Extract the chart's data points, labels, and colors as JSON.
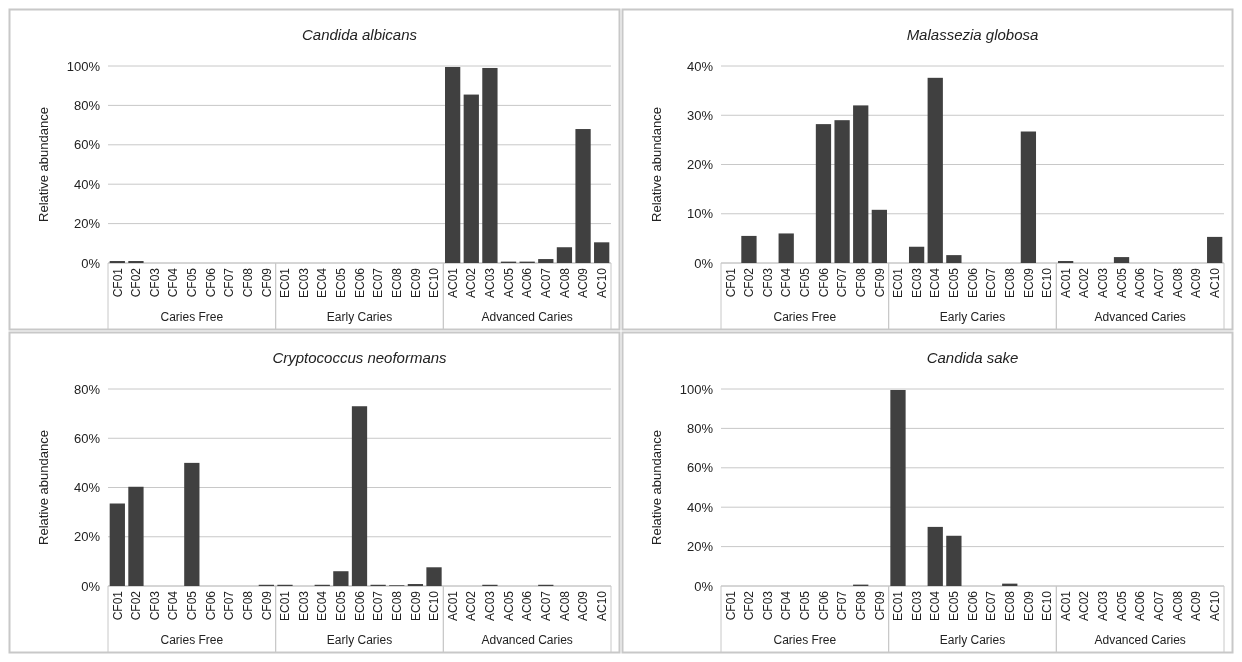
{
  "chart_data": [
    {
      "type": "bar",
      "title": "Candida albicans",
      "ylabel": "Relative abundance",
      "color": "#404040",
      "grid": "y",
      "categories": [
        "CF01",
        "CF02",
        "CF03",
        "CF04",
        "CF05",
        "CF06",
        "CF07",
        "CF08",
        "CF09",
        "EC01",
        "EC03",
        "EC04",
        "EC05",
        "EC06",
        "EC07",
        "EC08",
        "EC09",
        "EC10",
        "AC01",
        "AC02",
        "AC03",
        "AC05",
        "AC06",
        "AC07",
        "AC08",
        "AC09",
        "AC10"
      ],
      "values": [
        1,
        1,
        0,
        0,
        0,
        0,
        0,
        0,
        0,
        0,
        0,
        0,
        0,
        0,
        0,
        0,
        0,
        0,
        99.5,
        85.5,
        99,
        0.7,
        0.7,
        2,
        8,
        68,
        10.5
      ],
      "ylim": [
        0,
        100
      ],
      "yticks": [
        {
          "value": 0,
          "label": "0%"
        },
        {
          "value": 20,
          "label": "20%"
        },
        {
          "value": 40,
          "label": "40%"
        },
        {
          "value": 60,
          "label": "60%"
        },
        {
          "value": 80,
          "label": "80%"
        },
        {
          "value": 100,
          "label": "100%"
        }
      ],
      "annotations": [
        "Caries Free",
        "Early Caries",
        "Advanced Caries"
      ]
    },
    {
      "type": "bar",
      "title": "Malassezia globosa",
      "ylabel": "Relative abundance",
      "color": "#404040",
      "grid": "y",
      "categories": [
        "CF01",
        "CF02",
        "CF03",
        "CF04",
        "CF05",
        "CF06",
        "CF07",
        "CF08",
        "CF09",
        "EC01",
        "EC03",
        "EC04",
        "EC05",
        "EC06",
        "EC07",
        "EC08",
        "EC09",
        "EC10",
        "AC01",
        "AC02",
        "AC03",
        "AC05",
        "AC06",
        "AC07",
        "AC08",
        "AC09",
        "AC10"
      ],
      "values": [
        0,
        5.5,
        0,
        6,
        0,
        28.2,
        29,
        32,
        10.8,
        0,
        3.3,
        37.6,
        1.6,
        0,
        0,
        0,
        26.7,
        0,
        0.4,
        0,
        0,
        1.2,
        0,
        0,
        0,
        0,
        5.3
      ],
      "ylim": [
        0,
        40
      ],
      "yticks": [
        {
          "value": 0,
          "label": "0%"
        },
        {
          "value": 10,
          "label": "10%"
        },
        {
          "value": 20,
          "label": "20%"
        },
        {
          "value": 30,
          "label": "30%"
        },
        {
          "value": 40,
          "label": "40%"
        }
      ],
      "annotations": [
        "Caries Free",
        "Early Caries",
        "Advanced Caries"
      ]
    },
    {
      "type": "bar",
      "title": "Cryptococcus neoformans",
      "ylabel": "Relative abundance",
      "color": "#404040",
      "grid": "y",
      "categories": [
        "CF01",
        "CF02",
        "CF03",
        "CF04",
        "CF05",
        "CF06",
        "CF07",
        "CF08",
        "CF09",
        "EC01",
        "EC03",
        "EC04",
        "EC05",
        "EC06",
        "EC07",
        "EC08",
        "EC09",
        "EC10",
        "AC01",
        "AC02",
        "AC03",
        "AC05",
        "AC06",
        "AC07",
        "AC08",
        "AC09",
        "AC10"
      ],
      "values": [
        33.5,
        40.3,
        0,
        0,
        50,
        0,
        0,
        0,
        0.5,
        0.5,
        0,
        0.5,
        6,
        73,
        0.5,
        0.3,
        0.8,
        7.6,
        0,
        0,
        0.5,
        0,
        0,
        0.5,
        0,
        0,
        0
      ],
      "ylim": [
        0,
        80
      ],
      "yticks": [
        {
          "value": 0,
          "label": "0%"
        },
        {
          "value": 20,
          "label": "20%"
        },
        {
          "value": 40,
          "label": "40%"
        },
        {
          "value": 60,
          "label": "60%"
        },
        {
          "value": 80,
          "label": "80%"
        }
      ],
      "annotations": [
        "Caries Free",
        "Early Caries",
        "Advanced Caries"
      ]
    },
    {
      "type": "bar",
      "title": "Candida sake",
      "ylabel": "Relative abundance",
      "color": "#404040",
      "grid": "y",
      "categories": [
        "CF01",
        "CF02",
        "CF03",
        "CF04",
        "CF05",
        "CF06",
        "CF07",
        "CF08",
        "CF09",
        "EC01",
        "EC03",
        "EC04",
        "EC05",
        "EC06",
        "EC07",
        "EC08",
        "EC09",
        "EC10",
        "AC01",
        "AC02",
        "AC03",
        "AC05",
        "AC06",
        "AC07",
        "AC08",
        "AC09",
        "AC10"
      ],
      "values": [
        0,
        0,
        0,
        0,
        0,
        0,
        0,
        0.7,
        0,
        99.5,
        0,
        30,
        25.5,
        0,
        0,
        1.2,
        0,
        0,
        0,
        0,
        0,
        0,
        0,
        0,
        0,
        0,
        0
      ],
      "ylim": [
        0,
        100
      ],
      "yticks": [
        {
          "value": 0,
          "label": "0%"
        },
        {
          "value": 20,
          "label": "20%"
        },
        {
          "value": 40,
          "label": "40%"
        },
        {
          "value": 60,
          "label": "60%"
        },
        {
          "value": 80,
          "label": "80%"
        },
        {
          "value": 100,
          "label": "100%"
        }
      ],
      "annotations": [
        "Caries Free",
        "Early Caries",
        "Advanced Caries"
      ]
    }
  ]
}
